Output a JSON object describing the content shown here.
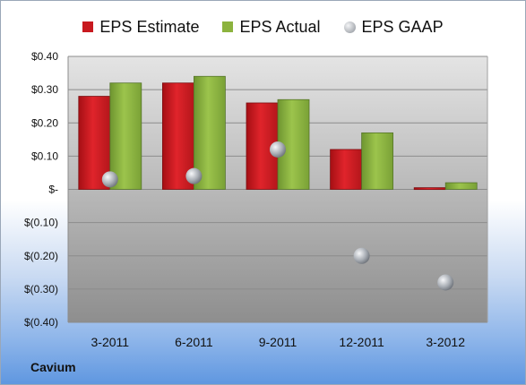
{
  "chart_data": {
    "type": "bar",
    "categories": [
      "3-2011",
      "6-2011",
      "9-2011",
      "12-2011",
      "3-2012"
    ],
    "series": [
      {
        "name": "EPS Estimate",
        "kind": "bar",
        "color": "#c8191f",
        "values": [
          0.28,
          0.32,
          0.26,
          0.12,
          0.005
        ]
      },
      {
        "name": "EPS Actual",
        "kind": "bar",
        "color": "#8cb33e",
        "values": [
          0.32,
          0.34,
          0.27,
          0.17,
          0.02
        ]
      },
      {
        "name": "EPS GAAP",
        "kind": "marker",
        "color": "#a7acb3",
        "values": [
          0.03,
          0.04,
          0.12,
          -0.2,
          -0.28
        ]
      }
    ],
    "ylim": [
      -0.4,
      0.4
    ],
    "y_ticks": [
      0.4,
      0.3,
      0.2,
      0.1,
      0.0,
      -0.1,
      -0.2,
      -0.3,
      -0.4
    ],
    "y_tick_labels": [
      "$0.40",
      "$0.30",
      "$0.20",
      "$0.10",
      "$-",
      "$(0.10)",
      "$(0.20)",
      "$(0.30)",
      "$(0.40)"
    ],
    "grid": true,
    "legend_position": "top",
    "company": "Cavium"
  }
}
